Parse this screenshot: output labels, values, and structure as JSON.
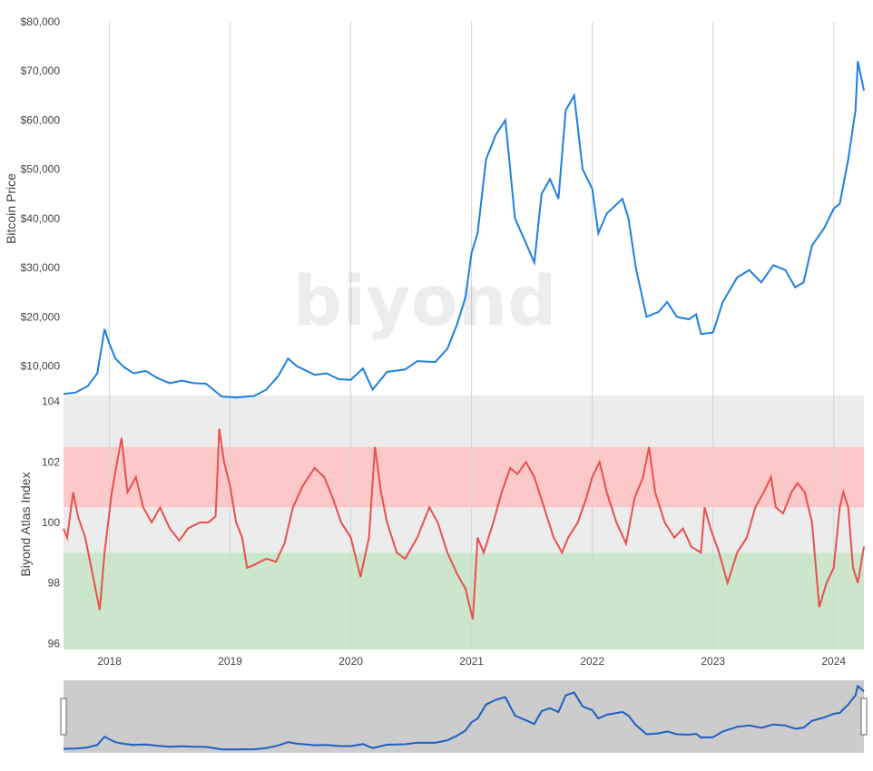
{
  "watermark": "biyond",
  "colors": {
    "price_line": "#1e7fe0",
    "index_line": "#e8504f",
    "band_grey": "#ececec",
    "band_red": "#fdc8c8",
    "band_green": "#cbe6cb",
    "grid": "#d4d4d4",
    "navigator_bg": "#cccccc",
    "navigator_line": "#1e5fc0"
  },
  "chart_data": [
    {
      "type": "line",
      "ylabel": "Bitcoin Price",
      "ylim": [
        4000,
        80000
      ],
      "yticks": [
        "$10,000",
        "$20,000",
        "$30,000",
        "$40,000",
        "$50,000",
        "$60,000",
        "$70,000",
        "$80,000"
      ],
      "ytick_values": [
        10000,
        20000,
        30000,
        40000,
        50000,
        60000,
        70000,
        80000
      ],
      "xlim": [
        2017.62,
        2024.25
      ],
      "grid": "vertical",
      "series": [
        {
          "values": [
            [
              2017.62,
              4300
            ],
            [
              2017.72,
              4600
            ],
            [
              2017.82,
              5900
            ],
            [
              2017.9,
              8500
            ],
            [
              2017.96,
              17500
            ],
            [
              2018.0,
              14500
            ],
            [
              2018.05,
              11500
            ],
            [
              2018.12,
              9800
            ],
            [
              2018.2,
              8500
            ],
            [
              2018.3,
              9000
            ],
            [
              2018.4,
              7500
            ],
            [
              2018.5,
              6500
            ],
            [
              2018.6,
              7000
            ],
            [
              2018.7,
              6500
            ],
            [
              2018.8,
              6400
            ],
            [
              2018.87,
              5000
            ],
            [
              2018.93,
              3800
            ],
            [
              2019.05,
              3600
            ],
            [
              2019.2,
              3900
            ],
            [
              2019.3,
              5200
            ],
            [
              2019.4,
              8000
            ],
            [
              2019.48,
              11500
            ],
            [
              2019.55,
              10000
            ],
            [
              2019.7,
              8200
            ],
            [
              2019.8,
              8500
            ],
            [
              2019.9,
              7300
            ],
            [
              2020.0,
              7200
            ],
            [
              2020.1,
              9500
            ],
            [
              2020.18,
              5200
            ],
            [
              2020.3,
              8800
            ],
            [
              2020.45,
              9300
            ],
            [
              2020.55,
              11000
            ],
            [
              2020.7,
              10800
            ],
            [
              2020.8,
              13500
            ],
            [
              2020.88,
              18500
            ],
            [
              2020.95,
              24000
            ],
            [
              2021.0,
              33000
            ],
            [
              2021.05,
              37000
            ],
            [
              2021.12,
              52000
            ],
            [
              2021.2,
              57000
            ],
            [
              2021.28,
              60000
            ],
            [
              2021.36,
              40000
            ],
            [
              2021.45,
              35000
            ],
            [
              2021.52,
              31000
            ],
            [
              2021.58,
              45000
            ],
            [
              2021.65,
              48000
            ],
            [
              2021.72,
              44000
            ],
            [
              2021.78,
              62000
            ],
            [
              2021.85,
              65000
            ],
            [
              2021.92,
              50000
            ],
            [
              2022.0,
              46000
            ],
            [
              2022.05,
              37000
            ],
            [
              2022.12,
              41000
            ],
            [
              2022.25,
              44000
            ],
            [
              2022.3,
              40000
            ],
            [
              2022.36,
              30000
            ],
            [
              2022.45,
              20000
            ],
            [
              2022.55,
              21000
            ],
            [
              2022.62,
              23000
            ],
            [
              2022.7,
              20000
            ],
            [
              2022.8,
              19500
            ],
            [
              2022.86,
              20500
            ],
            [
              2022.9,
              16500
            ],
            [
              2023.0,
              16800
            ],
            [
              2023.08,
              23000
            ],
            [
              2023.2,
              28000
            ],
            [
              2023.3,
              29500
            ],
            [
              2023.4,
              27000
            ],
            [
              2023.5,
              30500
            ],
            [
              2023.6,
              29500
            ],
            [
              2023.68,
              26000
            ],
            [
              2023.75,
              27000
            ],
            [
              2023.82,
              34500
            ],
            [
              2023.92,
              38000
            ],
            [
              2024.0,
              42000
            ],
            [
              2024.05,
              43000
            ],
            [
              2024.12,
              52000
            ],
            [
              2024.18,
              62000
            ],
            [
              2024.2,
              72000
            ],
            [
              2024.25,
              66000
            ]
          ]
        }
      ]
    },
    {
      "type": "line",
      "ylabel": "Biyond Atlas Index",
      "ylim": [
        95.8,
        104.2
      ],
      "yticks": [
        "96",
        "98",
        "100",
        "102",
        "104"
      ],
      "ytick_values": [
        96,
        98,
        100,
        102,
        104
      ],
      "xlim": [
        2017.62,
        2024.25
      ],
      "xticks": [
        "2018",
        "2019",
        "2020",
        "2021",
        "2022",
        "2023",
        "2024"
      ],
      "xtick_values": [
        2018,
        2019,
        2020,
        2021,
        2022,
        2023,
        2024
      ],
      "bands": [
        {
          "from": 95.8,
          "to": 99.0,
          "color": "green"
        },
        {
          "from": 99.0,
          "to": 100.5,
          "color": "grey"
        },
        {
          "from": 100.5,
          "to": 102.5,
          "color": "red"
        },
        {
          "from": 102.5,
          "to": 104.2,
          "color": "grey"
        }
      ],
      "series": [
        {
          "values": [
            [
              2017.62,
              99.8
            ],
            [
              2017.65,
              99.5
            ],
            [
              2017.7,
              101.0
            ],
            [
              2017.74,
              100.2
            ],
            [
              2017.8,
              99.5
            ],
            [
              2017.85,
              98.5
            ],
            [
              2017.92,
              97.1
            ],
            [
              2017.96,
              99.0
            ],
            [
              2018.02,
              101.0
            ],
            [
              2018.1,
              102.8
            ],
            [
              2018.15,
              101.0
            ],
            [
              2018.22,
              101.5
            ],
            [
              2018.28,
              100.5
            ],
            [
              2018.35,
              100.0
            ],
            [
              2018.42,
              100.5
            ],
            [
              2018.5,
              99.8
            ],
            [
              2018.58,
              99.4
            ],
            [
              2018.65,
              99.8
            ],
            [
              2018.75,
              100.0
            ],
            [
              2018.82,
              100.0
            ],
            [
              2018.88,
              100.2
            ],
            [
              2018.91,
              103.1
            ],
            [
              2018.95,
              102.0
            ],
            [
              2019.0,
              101.2
            ],
            [
              2019.05,
              100.0
            ],
            [
              2019.1,
              99.5
            ],
            [
              2019.14,
              98.5
            ],
            [
              2019.2,
              98.6
            ],
            [
              2019.3,
              98.8
            ],
            [
              2019.38,
              98.7
            ],
            [
              2019.45,
              99.3
            ],
            [
              2019.52,
              100.5
            ],
            [
              2019.6,
              101.2
            ],
            [
              2019.7,
              101.8
            ],
            [
              2019.78,
              101.5
            ],
            [
              2019.85,
              100.8
            ],
            [
              2019.92,
              100.0
            ],
            [
              2020.0,
              99.5
            ],
            [
              2020.08,
              98.2
            ],
            [
              2020.15,
              99.5
            ],
            [
              2020.2,
              102.5
            ],
            [
              2020.25,
              101.0
            ],
            [
              2020.3,
              100.0
            ],
            [
              2020.38,
              99.0
            ],
            [
              2020.45,
              98.8
            ],
            [
              2020.55,
              99.5
            ],
            [
              2020.65,
              100.5
            ],
            [
              2020.72,
              100.0
            ],
            [
              2020.8,
              99.0
            ],
            [
              2020.88,
              98.3
            ],
            [
              2020.95,
              97.8
            ],
            [
              2021.01,
              96.8
            ],
            [
              2021.05,
              99.5
            ],
            [
              2021.1,
              99.0
            ],
            [
              2021.18,
              100.0
            ],
            [
              2021.25,
              101.0
            ],
            [
              2021.32,
              101.8
            ],
            [
              2021.38,
              101.6
            ],
            [
              2021.45,
              102.0
            ],
            [
              2021.52,
              101.5
            ],
            [
              2021.6,
              100.5
            ],
            [
              2021.68,
              99.5
            ],
            [
              2021.75,
              99.0
            ],
            [
              2021.8,
              99.5
            ],
            [
              2021.88,
              100.0
            ],
            [
              2021.95,
              100.8
            ],
            [
              2022.0,
              101.5
            ],
            [
              2022.06,
              102.0
            ],
            [
              2022.12,
              101.0
            ],
            [
              2022.2,
              100.0
            ],
            [
              2022.28,
              99.3
            ],
            [
              2022.35,
              100.8
            ],
            [
              2022.42,
              101.5
            ],
            [
              2022.47,
              102.5
            ],
            [
              2022.52,
              101.0
            ],
            [
              2022.6,
              100.0
            ],
            [
              2022.68,
              99.5
            ],
            [
              2022.75,
              99.8
            ],
            [
              2022.82,
              99.2
            ],
            [
              2022.9,
              99.0
            ],
            [
              2022.93,
              100.5
            ],
            [
              2022.98,
              99.8
            ],
            [
              2023.05,
              99.0
            ],
            [
              2023.12,
              98.0
            ],
            [
              2023.2,
              99.0
            ],
            [
              2023.28,
              99.5
            ],
            [
              2023.35,
              100.5
            ],
            [
              2023.42,
              101.0
            ],
            [
              2023.48,
              101.5
            ],
            [
              2023.52,
              100.5
            ],
            [
              2023.58,
              100.3
            ],
            [
              2023.65,
              101.0
            ],
            [
              2023.7,
              101.3
            ],
            [
              2023.76,
              101.0
            ],
            [
              2023.82,
              100.0
            ],
            [
              2023.88,
              97.2
            ],
            [
              2023.94,
              98.0
            ],
            [
              2024.0,
              98.5
            ],
            [
              2024.05,
              100.5
            ],
            [
              2024.08,
              101.0
            ],
            [
              2024.12,
              100.5
            ],
            [
              2024.16,
              98.5
            ],
            [
              2024.2,
              98.0
            ],
            [
              2024.25,
              99.2
            ]
          ]
        }
      ]
    }
  ]
}
